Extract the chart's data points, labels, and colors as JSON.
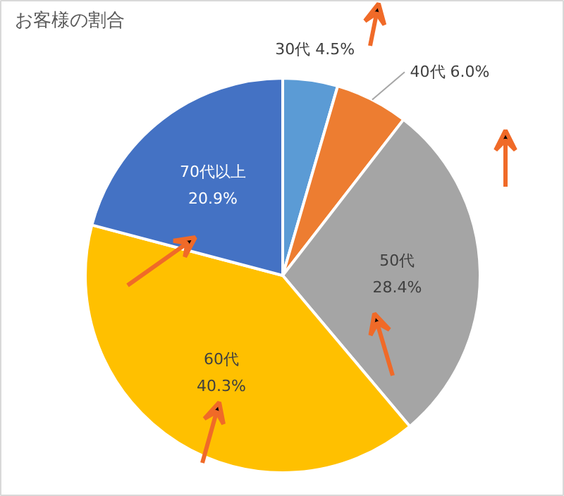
{
  "chart_data": {
    "type": "pie",
    "title": "お客様の割合",
    "categories": [
      "30代",
      "40代",
      "50代",
      "60代",
      "70代以上"
    ],
    "values": [
      4.5,
      6.0,
      28.4,
      40.3,
      20.9
    ],
    "value_labels": [
      "4.5%",
      "6.0%",
      "28.4%",
      "40.3%",
      "20.9%"
    ],
    "colors": [
      "#5b9bd5",
      "#ed7d31",
      "#a5a5a5",
      "#ffc000",
      "#4472c4"
    ]
  }
}
